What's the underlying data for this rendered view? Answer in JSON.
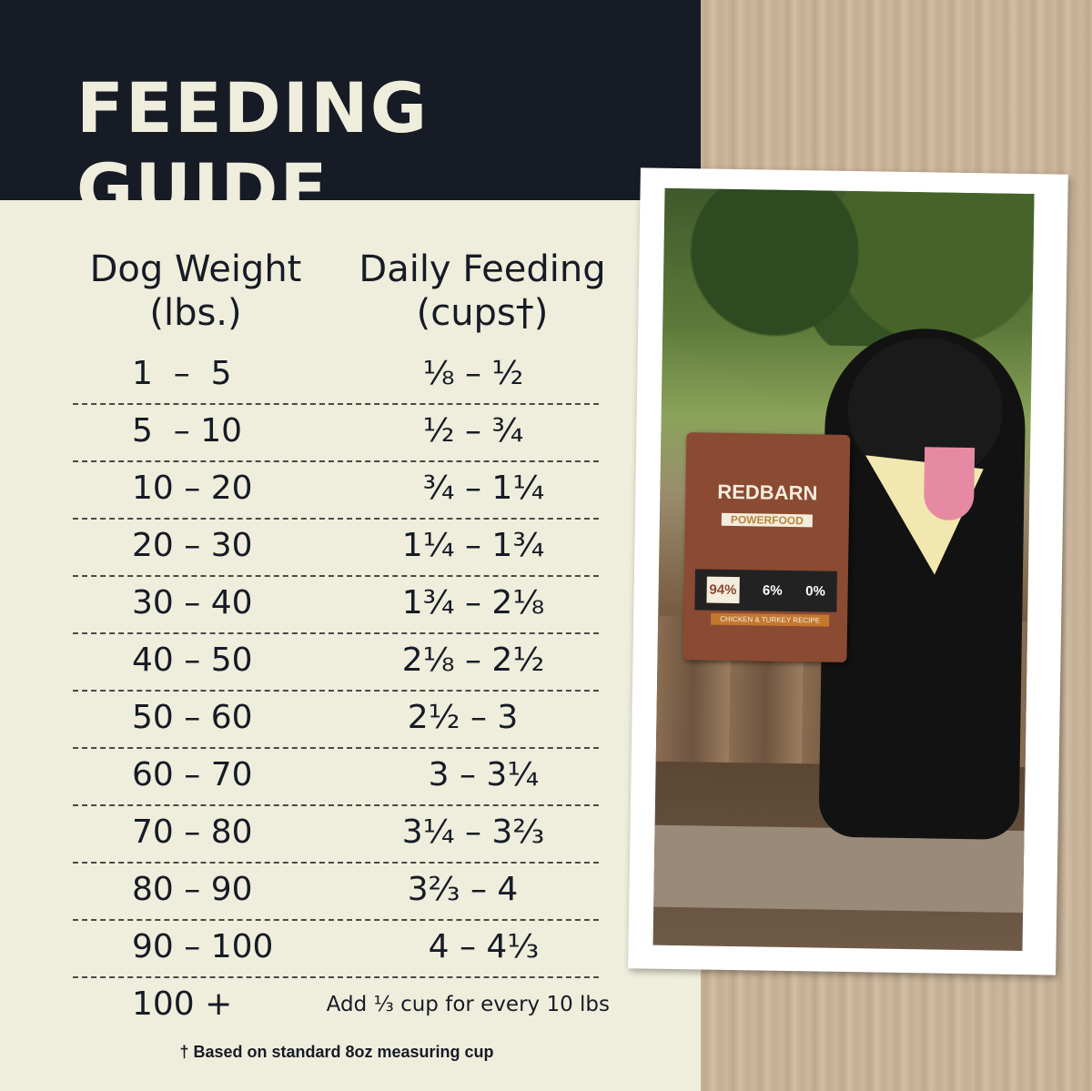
{
  "header": {
    "title": "FEEDING GUIDE"
  },
  "columns": {
    "weight": "Dog Weight\n(lbs.)",
    "feeding": "Daily Feeding\n(cups†)"
  },
  "rows": [
    {
      "weight": "1  –  5",
      "feeding": "⅛ – ½"
    },
    {
      "weight": "5  – 10",
      "feeding": "½ – ¾"
    },
    {
      "weight": "10 – 20",
      "feeding": "  ¾ – 1¼"
    },
    {
      "weight": "20 – 30",
      "feeding": "1¼ – 1¾"
    },
    {
      "weight": "30 – 40",
      "feeding": "1¾ – 2⅛"
    },
    {
      "weight": "40 – 50",
      "feeding": "2⅛ – 2½"
    },
    {
      "weight": "50 – 60",
      "feeding": "2½ – 3  "
    },
    {
      "weight": "60 – 70",
      "feeding": "  3 – 3¼"
    },
    {
      "weight": "70 – 80",
      "feeding": "3¼ – 3⅔"
    },
    {
      "weight": "80 – 90",
      "feeding": "3⅔ – 4  "
    },
    {
      "weight": "90 – 100",
      "feeding": "  4 – 4⅓"
    },
    {
      "weight": "100 +",
      "feeding": "Add ⅓ cup for every 10 lbs"
    }
  ],
  "footnote": "† Based on standard 8oz measuring cup",
  "photo": {
    "bag": {
      "brand": "REDBARN",
      "product": "POWERFOOD",
      "stats": [
        "94%",
        "6%",
        "0%"
      ],
      "recipe": "CHICKEN & TURKEY RECIPE"
    }
  },
  "colors": {
    "header": "#161b26",
    "panel": "#efeedc",
    "text": "#161b26"
  }
}
